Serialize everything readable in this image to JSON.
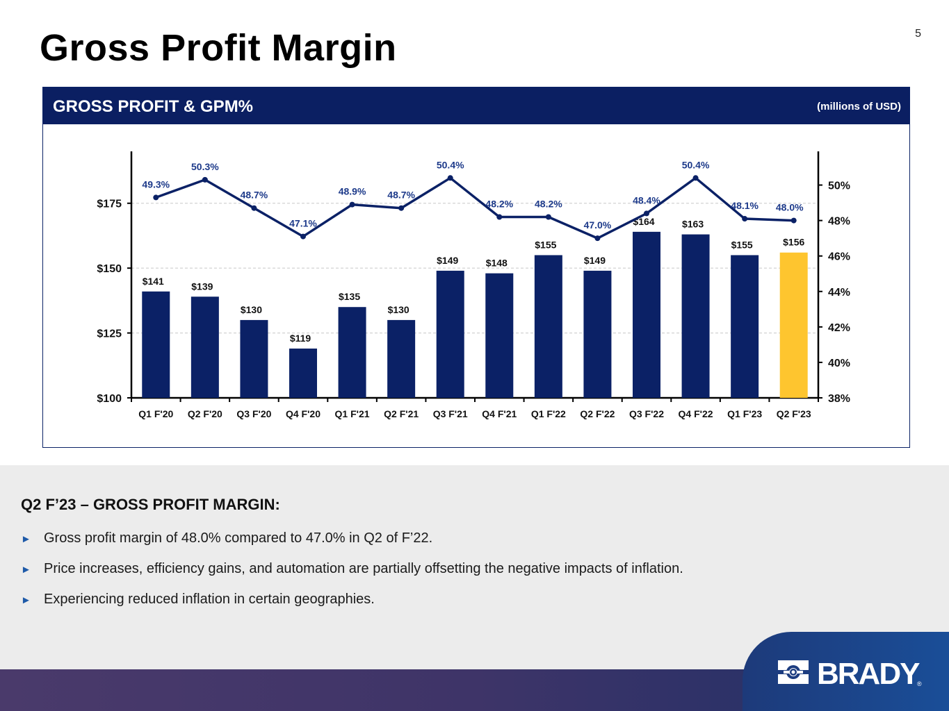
{
  "page": {
    "title": "Gross Profit Margin",
    "page_number": "5"
  },
  "panel": {
    "title": "GROSS PROFIT & GPM%",
    "units": "(millions of USD)"
  },
  "chart_data": {
    "type": "bar",
    "title": "GROSS PROFIT & GPM%",
    "categories": [
      "Q1 F'20",
      "Q2 F'20",
      "Q3 F'20",
      "Q4 F'20",
      "Q1 F'21",
      "Q2 F'21",
      "Q3 F'21",
      "Q4 F'21",
      "Q1 F'22",
      "Q2 F'22",
      "Q3 F'22",
      "Q4 F'22",
      "Q1 F'23",
      "Q2 F'23"
    ],
    "series": [
      {
        "name": "Gross Profit",
        "axis": "left",
        "type": "bar",
        "values": [
          141,
          139,
          130,
          119,
          135,
          130,
          149,
          148,
          155,
          149,
          164,
          163,
          155,
          156
        ],
        "labels": [
          "$141",
          "$139",
          "$130",
          "$119",
          "$135",
          "$130",
          "$149",
          "$148",
          "$155",
          "$149",
          "$164",
          "$163",
          "$155",
          "$156"
        ],
        "color": "#0b2166",
        "highlight_color": "#fec52f",
        "highlight_index": 13
      },
      {
        "name": "GPM%",
        "axis": "right",
        "type": "line",
        "values": [
          49.3,
          50.3,
          48.7,
          47.1,
          48.9,
          48.7,
          50.4,
          48.2,
          48.2,
          47.0,
          48.4,
          50.4,
          48.1,
          48.0
        ],
        "labels": [
          "49.3%",
          "50.3%",
          "48.7%",
          "47.1%",
          "48.9%",
          "48.7%",
          "50.4%",
          "48.2%",
          "48.2%",
          "47.0%",
          "48.4%",
          "50.4%",
          "48.1%",
          "48.0%"
        ],
        "color": "#0b2166"
      }
    ],
    "left_axis": {
      "ylim": [
        100,
        195
      ],
      "ticks": [
        100,
        125,
        150,
        175
      ],
      "tick_labels": [
        "$100",
        "$125",
        "$150",
        "$175"
      ]
    },
    "right_axis": {
      "ylim": [
        38,
        51.9
      ],
      "ticks": [
        38,
        40,
        42,
        44,
        46,
        48,
        50
      ],
      "tick_labels": [
        "38%",
        "40%",
        "42%",
        "44%",
        "46%",
        "48%",
        "50%"
      ]
    },
    "grid": true,
    "xlabel": "",
    "ylabel": ""
  },
  "commentary": {
    "heading": "Q2 F’23 – GROSS PROFIT MARGIN:",
    "bullet_glyph": "►",
    "bullets": [
      "Gross profit margin of 48.0% compared to 47.0% in Q2 of F’22.",
      "Price increases, efficiency gains, and automation are partially offsetting the negative impacts of inflation.",
      "Experiencing reduced inflation in certain geographies."
    ]
  },
  "brand": {
    "name": "BRADY",
    "registered": "®"
  }
}
